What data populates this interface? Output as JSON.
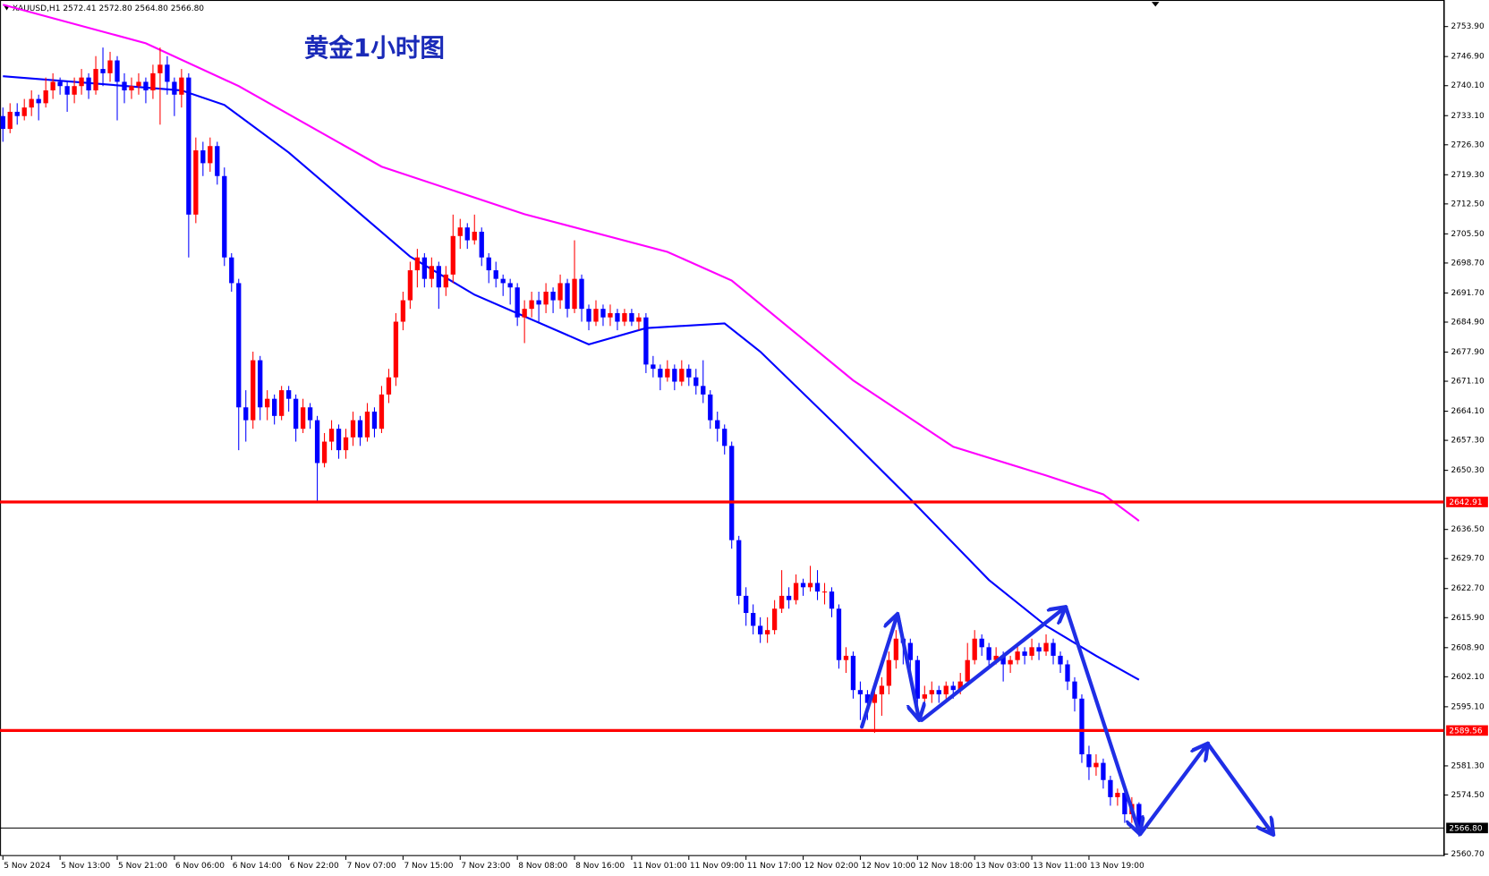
{
  "chart_data": {
    "type": "candlestick",
    "title": "黄金1小时图",
    "header": "XAUUSD,H1  2572.41 2572.80 2564.80 2566.80",
    "up_color": "#ff0000",
    "down_color": "#0000ff",
    "categories": [
      "5 Nov 2024",
      null,
      null,
      null,
      null,
      null,
      null,
      null,
      "5 Nov 13:00",
      null,
      null,
      null,
      null,
      null,
      null,
      null,
      "5 Nov 21:00",
      null,
      null,
      null,
      null,
      null,
      null,
      null,
      "6 Nov 06:00",
      null,
      null,
      null,
      null,
      null,
      null,
      null,
      "6 Nov 14:00",
      null,
      null,
      null,
      null,
      null,
      null,
      null,
      "6 Nov 22:00",
      null,
      null,
      null,
      null,
      null,
      null,
      null,
      "7 Nov 07:00",
      null,
      null,
      null,
      null,
      null,
      null,
      null,
      "7 Nov 15:00",
      null,
      null,
      null,
      null,
      null,
      null,
      null,
      "7 Nov 23:00",
      null,
      null,
      null,
      null,
      null,
      null,
      null,
      "8 Nov 08:00",
      null,
      null,
      null,
      null,
      null,
      null,
      null,
      "8 Nov 16:00",
      null,
      null,
      null,
      null,
      null,
      null,
      null,
      "11 Nov 01:00",
      null,
      null,
      null,
      null,
      null,
      null,
      null,
      "11 Nov 09:00",
      null,
      null,
      null,
      null,
      null,
      null,
      null,
      "11 Nov 17:00",
      null,
      null,
      null,
      null,
      null,
      null,
      null,
      "12 Nov 02:00",
      null,
      null,
      null,
      null,
      null,
      null,
      null,
      "12 Nov 10:00",
      null,
      null,
      null,
      null,
      null,
      null,
      null,
      "12 Nov 18:00",
      null,
      null,
      null,
      null,
      null,
      null,
      null,
      "13 Nov 03:00",
      null,
      null,
      null,
      null,
      null,
      null,
      null,
      "13 Nov 11:00",
      null,
      null,
      null,
      null,
      null,
      null,
      null,
      "13 Nov 19:00",
      null,
      null,
      null,
      null,
      null,
      null,
      null
    ],
    "ohlc": [
      [
        2733,
        2735,
        2727,
        2730
      ],
      [
        2730,
        2736,
        2729,
        2734
      ],
      [
        2734,
        2736,
        2731,
        2733
      ],
      [
        2733,
        2737,
        2732,
        2735
      ],
      [
        2735,
        2739,
        2733,
        2737
      ],
      [
        2737,
        2738,
        2732,
        2736
      ],
      [
        2736,
        2742,
        2735,
        2739
      ],
      [
        2739,
        2743,
        2737,
        2741
      ],
      [
        2741,
        2742,
        2738,
        2740
      ],
      [
        2740,
        2741,
        2734,
        2738
      ],
      [
        2738,
        2742,
        2736,
        2740
      ],
      [
        2740,
        2744,
        2738,
        2742
      ],
      [
        2742,
        2743,
        2737,
        2739
      ],
      [
        2739,
        2747,
        2738,
        2744
      ],
      [
        2744,
        2749,
        2740,
        2743
      ],
      [
        2743,
        2748,
        2741,
        2746
      ],
      [
        2746,
        2747,
        2732,
        2741
      ],
      [
        2741,
        2743,
        2736,
        2739
      ],
      [
        2739,
        2742,
        2737,
        2740
      ],
      [
        2740,
        2743,
        2738,
        2741
      ],
      [
        2741,
        2742,
        2736,
        2739
      ],
      [
        2739,
        2745,
        2737,
        2743
      ],
      [
        2743,
        2749,
        2731,
        2745
      ],
      [
        2745,
        2747,
        2738,
        2741
      ],
      [
        2741,
        2742,
        2733,
        2738
      ],
      [
        2738,
        2744,
        2735,
        2742
      ],
      [
        2742,
        2743,
        2700,
        2710
      ],
      [
        2710,
        2728,
        2708,
        2725
      ],
      [
        2725,
        2727,
        2719,
        2722
      ],
      [
        2722,
        2728,
        2720,
        2726
      ],
      [
        2726,
        2727,
        2717,
        2719
      ],
      [
        2719,
        2721,
        2698,
        2700
      ],
      [
        2700,
        2701,
        2692,
        2694
      ],
      [
        2694,
        2695,
        2655,
        2665
      ],
      [
        2665,
        2669,
        2657,
        2662
      ],
      [
        2662,
        2678,
        2660,
        2676
      ],
      [
        2676,
        2677,
        2662,
        2665
      ],
      [
        2665,
        2669,
        2662,
        2667
      ],
      [
        2667,
        2668,
        2661,
        2663
      ],
      [
        2663,
        2670,
        2662,
        2669
      ],
      [
        2669,
        2670,
        2664,
        2667
      ],
      [
        2667,
        2668,
        2657,
        2660
      ],
      [
        2660,
        2667,
        2659,
        2665
      ],
      [
        2665,
        2666,
        2660,
        2662
      ],
      [
        2662,
        2663,
        2643,
        2652
      ],
      [
        2652,
        2659,
        2651,
        2657
      ],
      [
        2657,
        2662,
        2655,
        2660
      ],
      [
        2660,
        2661,
        2653,
        2655
      ],
      [
        2655,
        2660,
        2653,
        2658
      ],
      [
        2658,
        2664,
        2656,
        2662
      ],
      [
        2662,
        2663,
        2656,
        2658
      ],
      [
        2658,
        2666,
        2657,
        2664
      ],
      [
        2664,
        2665,
        2658,
        2660
      ],
      [
        2660,
        2670,
        2659,
        2668
      ],
      [
        2668,
        2674,
        2666,
        2672
      ],
      [
        2672,
        2687,
        2670,
        2685
      ],
      [
        2685,
        2692,
        2683,
        2690
      ],
      [
        2690,
        2699,
        2688,
        2697
      ],
      [
        2697,
        2702,
        2693,
        2700
      ],
      [
        2700,
        2701,
        2693,
        2695
      ],
      [
        2695,
        2700,
        2693,
        2698
      ],
      [
        2698,
        2699,
        2688,
        2693
      ],
      [
        2693,
        2698,
        2691,
        2696
      ],
      [
        2696,
        2710,
        2694,
        2705
      ],
      [
        2705,
        2709,
        2702,
        2707
      ],
      [
        2707,
        2708,
        2702,
        2704
      ],
      [
        2704,
        2710,
        2703,
        2706
      ],
      [
        2706,
        2707,
        2698,
        2700
      ],
      [
        2700,
        2701,
        2694,
        2697
      ],
      [
        2697,
        2699,
        2693,
        2695
      ],
      [
        2695,
        2696,
        2691,
        2694
      ],
      [
        2694,
        2695,
        2689,
        2693
      ],
      [
        2693,
        2694,
        2684,
        2686
      ],
      [
        2686,
        2690,
        2680,
        2688
      ],
      [
        2688,
        2692,
        2686,
        2690
      ],
      [
        2690,
        2692,
        2685,
        2689
      ],
      [
        2689,
        2694,
        2687,
        2692
      ],
      [
        2692,
        2693,
        2687,
        2690
      ],
      [
        2690,
        2696,
        2688,
        2694
      ],
      [
        2694,
        2695,
        2686,
        2688
      ],
      [
        2688,
        2704,
        2687,
        2695
      ],
      [
        2695,
        2696,
        2685,
        2688
      ],
      [
        2688,
        2689,
        2683,
        2685
      ],
      [
        2685,
        2690,
        2684,
        2688
      ],
      [
        2688,
        2689,
        2684,
        2686
      ],
      [
        2686,
        2689,
        2684,
        2687
      ],
      [
        2687,
        2688,
        2683,
        2685
      ],
      [
        2685,
        2688,
        2684,
        2687
      ],
      [
        2687,
        2688,
        2684,
        2685
      ],
      [
        2685,
        2687,
        2683,
        2686
      ],
      [
        2686,
        2687,
        2673,
        2675
      ],
      [
        2675,
        2677,
        2672,
        2674
      ],
      [
        2674,
        2675,
        2669,
        2672
      ],
      [
        2672,
        2676,
        2671,
        2674
      ],
      [
        2674,
        2675,
        2669,
        2671
      ],
      [
        2671,
        2676,
        2670,
        2674
      ],
      [
        2674,
        2675,
        2670,
        2672
      ],
      [
        2672,
        2674,
        2668,
        2670
      ],
      [
        2670,
        2676,
        2666,
        2668
      ],
      [
        2668,
        2669,
        2660,
        2662
      ],
      [
        2662,
        2664,
        2657,
        2660
      ],
      [
        2660,
        2661,
        2654,
        2656
      ],
      [
        2656,
        2657,
        2632,
        2634
      ],
      [
        2634,
        2635,
        2619,
        2621
      ],
      [
        2621,
        2623,
        2614,
        2617
      ],
      [
        2617,
        2619,
        2612,
        2614
      ],
      [
        2614,
        2616,
        2610,
        2612
      ],
      [
        2612,
        2616,
        2610,
        2613
      ],
      [
        2613,
        2620,
        2612,
        2618
      ],
      [
        2618,
        2627,
        2617,
        2621
      ],
      [
        2621,
        2623,
        2618,
        2620
      ],
      [
        2620,
        2626,
        2619,
        2624
      ],
      [
        2624,
        2625,
        2621,
        2623
      ],
      [
        2623,
        2628,
        2622,
        2624
      ],
      [
        2624,
        2627,
        2620,
        2622
      ],
      [
        2622,
        2624,
        2619,
        2622
      ],
      [
        2622,
        2623,
        2616,
        2618
      ],
      [
        2618,
        2619,
        2604,
        2606
      ],
      [
        2606,
        2609,
        2603,
        2607
      ],
      [
        2607,
        2608,
        2597,
        2599
      ],
      [
        2599,
        2601,
        2592,
        2598
      ],
      [
        2598,
        2599,
        2592,
        2596
      ],
      [
        2596,
        2600,
        2589,
        2598
      ],
      [
        2598,
        2602,
        2593,
        2600
      ],
      [
        2600,
        2608,
        2598,
        2606
      ],
      [
        2606,
        2613,
        2604,
        2611
      ],
      [
        2611,
        2612,
        2605,
        2610
      ],
      [
        2610,
        2611,
        2603,
        2606
      ],
      [
        2606,
        2607,
        2595,
        2597
      ],
      [
        2597,
        2600,
        2595,
        2598
      ],
      [
        2598,
        2601,
        2596,
        2599
      ],
      [
        2599,
        2600,
        2596,
        2598
      ],
      [
        2598,
        2601,
        2597,
        2600
      ],
      [
        2600,
        2601,
        2597,
        2599
      ],
      [
        2599,
        2603,
        2598,
        2601
      ],
      [
        2601,
        2610,
        2600,
        2606
      ],
      [
        2606,
        2613,
        2605,
        2611
      ],
      [
        2611,
        2612,
        2607,
        2609
      ],
      [
        2609,
        2610,
        2604,
        2606
      ],
      [
        2606,
        2609,
        2605,
        2607
      ],
      [
        2607,
        2608,
        2601,
        2605
      ],
      [
        2605,
        2607,
        2603,
        2606
      ],
      [
        2606,
        2610,
        2605,
        2608
      ],
      [
        2608,
        2609,
        2605,
        2607
      ],
      [
        2607,
        2611,
        2606,
        2609
      ],
      [
        2609,
        2610,
        2606,
        2608
      ],
      [
        2608,
        2612,
        2607,
        2610
      ],
      [
        2610,
        2611,
        2605,
        2607
      ],
      [
        2607,
        2608,
        2603,
        2605
      ],
      [
        2605,
        2606,
        2599,
        2601
      ],
      [
        2601,
        2602,
        2594,
        2597
      ],
      [
        2597,
        2598,
        2582,
        2584
      ],
      [
        2584,
        2586,
        2578,
        2581
      ],
      [
        2581,
        2584,
        2579,
        2582
      ],
      [
        2582,
        2583,
        2576,
        2578
      ],
      [
        2578,
        2579,
        2572,
        2574
      ],
      [
        2574,
        2576,
        2572,
        2575
      ],
      [
        2575,
        2576,
        2568,
        2570
      ],
      [
        2570,
        2574,
        2568,
        2572.41
      ],
      [
        2572.41,
        2572.8,
        2564.8,
        2566.8
      ]
    ],
    "lines": [
      {
        "color": "#0000ff",
        "x": [
          0,
          25,
          31,
          40,
          57,
          66,
          82,
          90,
          101,
          106,
          117,
          127,
          138,
          146,
          153,
          159
        ],
        "values": [
          2742.3,
          2739,
          2735.6,
          2724.5,
          2700.2,
          2691.3,
          2679.7,
          2683.5,
          2684.6,
          2678,
          2660.2,
          2643.6,
          2624.7,
          2614,
          2607,
          2601.4
        ]
      },
      {
        "color": "#ff00ff",
        "x": [
          0,
          20,
          33,
          53,
          73,
          93,
          102,
          119,
          133,
          146,
          154,
          159
        ],
        "values": [
          2759,
          2750,
          2740,
          2721.2,
          2710.1,
          2701.3,
          2694.6,
          2671.3,
          2655.8,
          2649.1,
          2644.7,
          2638.5
        ]
      }
    ],
    "hlines": [
      {
        "value": 2642.91,
        "label": "2642.91",
        "color": "#ff0000"
      },
      {
        "value": 2589.56,
        "label": "2589.56",
        "color": "#ff0000"
      },
      {
        "value": 2566.8,
        "label": "2566.80",
        "color": "#000000"
      }
    ],
    "ylim": [
      2560.05,
      2760.1
    ],
    "yticks": [
      {
        "value": 2753.9,
        "label": "2753.90"
      },
      {
        "value": 2746.9,
        "label": "2746.90"
      },
      {
        "value": 2740.1,
        "label": "2740.10"
      },
      {
        "value": 2733.1,
        "label": "2733.10"
      },
      {
        "value": 2726.3,
        "label": "2726.30"
      },
      {
        "value": 2719.3,
        "label": "2719.30"
      },
      {
        "value": 2712.5,
        "label": "2712.50"
      },
      {
        "value": 2705.5,
        "label": "2705.50"
      },
      {
        "value": 2698.7,
        "label": "2698.70"
      },
      {
        "value": 2691.7,
        "label": "2691.70"
      },
      {
        "value": 2684.9,
        "label": "2684.90"
      },
      {
        "value": 2677.9,
        "label": "2677.90"
      },
      {
        "value": 2671.1,
        "label": "2671.10"
      },
      {
        "value": 2664.1,
        "label": "2664.10"
      },
      {
        "value": 2657.3,
        "label": "2657.30"
      },
      {
        "value": 2650.3,
        "label": "2650.30"
      },
      {
        "value": 2636.5,
        "label": "2636.50"
      },
      {
        "value": 2629.7,
        "label": "2629.70"
      },
      {
        "value": 2622.7,
        "label": "2622.70"
      },
      {
        "value": 2615.9,
        "label": "2615.90"
      },
      {
        "value": 2608.9,
        "label": "2608.90"
      },
      {
        "value": 2602.1,
        "label": "2602.10"
      },
      {
        "value": 2595.1,
        "label": "2595.10"
      },
      {
        "value": 2581.3,
        "label": "2581.30"
      },
      {
        "value": 2574.5,
        "label": "2574.50"
      },
      {
        "value": 2560.7,
        "label": "2560.70"
      }
    ]
  }
}
